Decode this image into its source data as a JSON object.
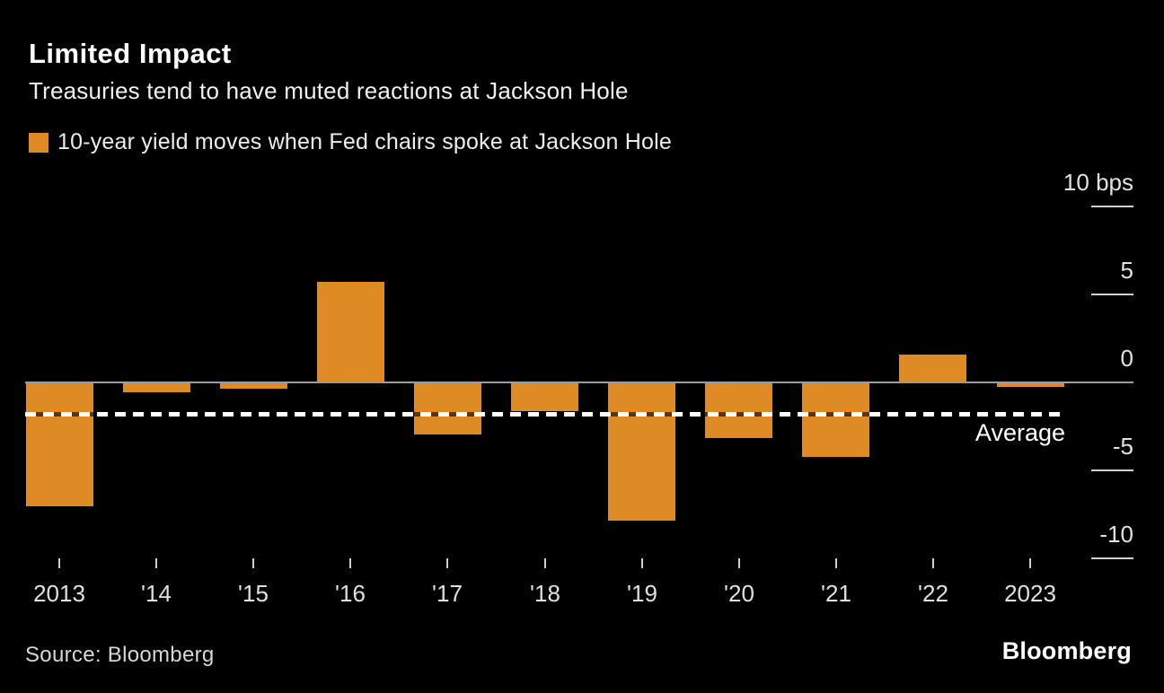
{
  "header": {
    "title": "Limited Impact",
    "subtitle": "Treasuries tend to have muted reactions at Jackson Hole",
    "legend_label": "10-year yield moves when Fed chairs spoke at Jackson Hole"
  },
  "footer": {
    "source": "Source: Bloomberg",
    "logo": "Bloomberg"
  },
  "colors": {
    "background": "#000000",
    "bar": "#DE8B26",
    "axis_line": "#9c9c9c",
    "tick": "#cfcfcf",
    "axis_label": "#e2e2e2",
    "title": "#ffffff",
    "average_dash": "#ffffff",
    "average_dash_gap_on_bar": "rgba(0,0,0,0.6)"
  },
  "chart_data": {
    "type": "bar",
    "title": "Limited Impact",
    "subtitle": "Treasuries tend to have muted reactions at Jackson Hole",
    "legend": [
      "10-year yield moves when Fed chairs spoke at Jackson Hole"
    ],
    "unit": "bps",
    "categories": [
      "2013",
      "'14",
      "'15",
      "'16",
      "'17",
      "'18",
      "'19",
      "'20",
      "'21",
      "'22",
      "2023"
    ],
    "values": [
      -7.0,
      -0.5,
      -0.3,
      5.7,
      -2.9,
      -1.6,
      -7.8,
      -3.1,
      -4.2,
      1.6,
      -0.2
    ],
    "average": -1.8,
    "average_label": "Average",
    "y_ticks": [
      10,
      5,
      0,
      -5,
      -10
    ],
    "y_tick_labels": [
      "10 bps",
      "5",
      "0",
      "-5",
      "-10"
    ],
    "ylim": [
      -11,
      11
    ],
    "ylabel": "bps",
    "grid": "off",
    "legend_position": "top-left",
    "axis_side": "right"
  }
}
